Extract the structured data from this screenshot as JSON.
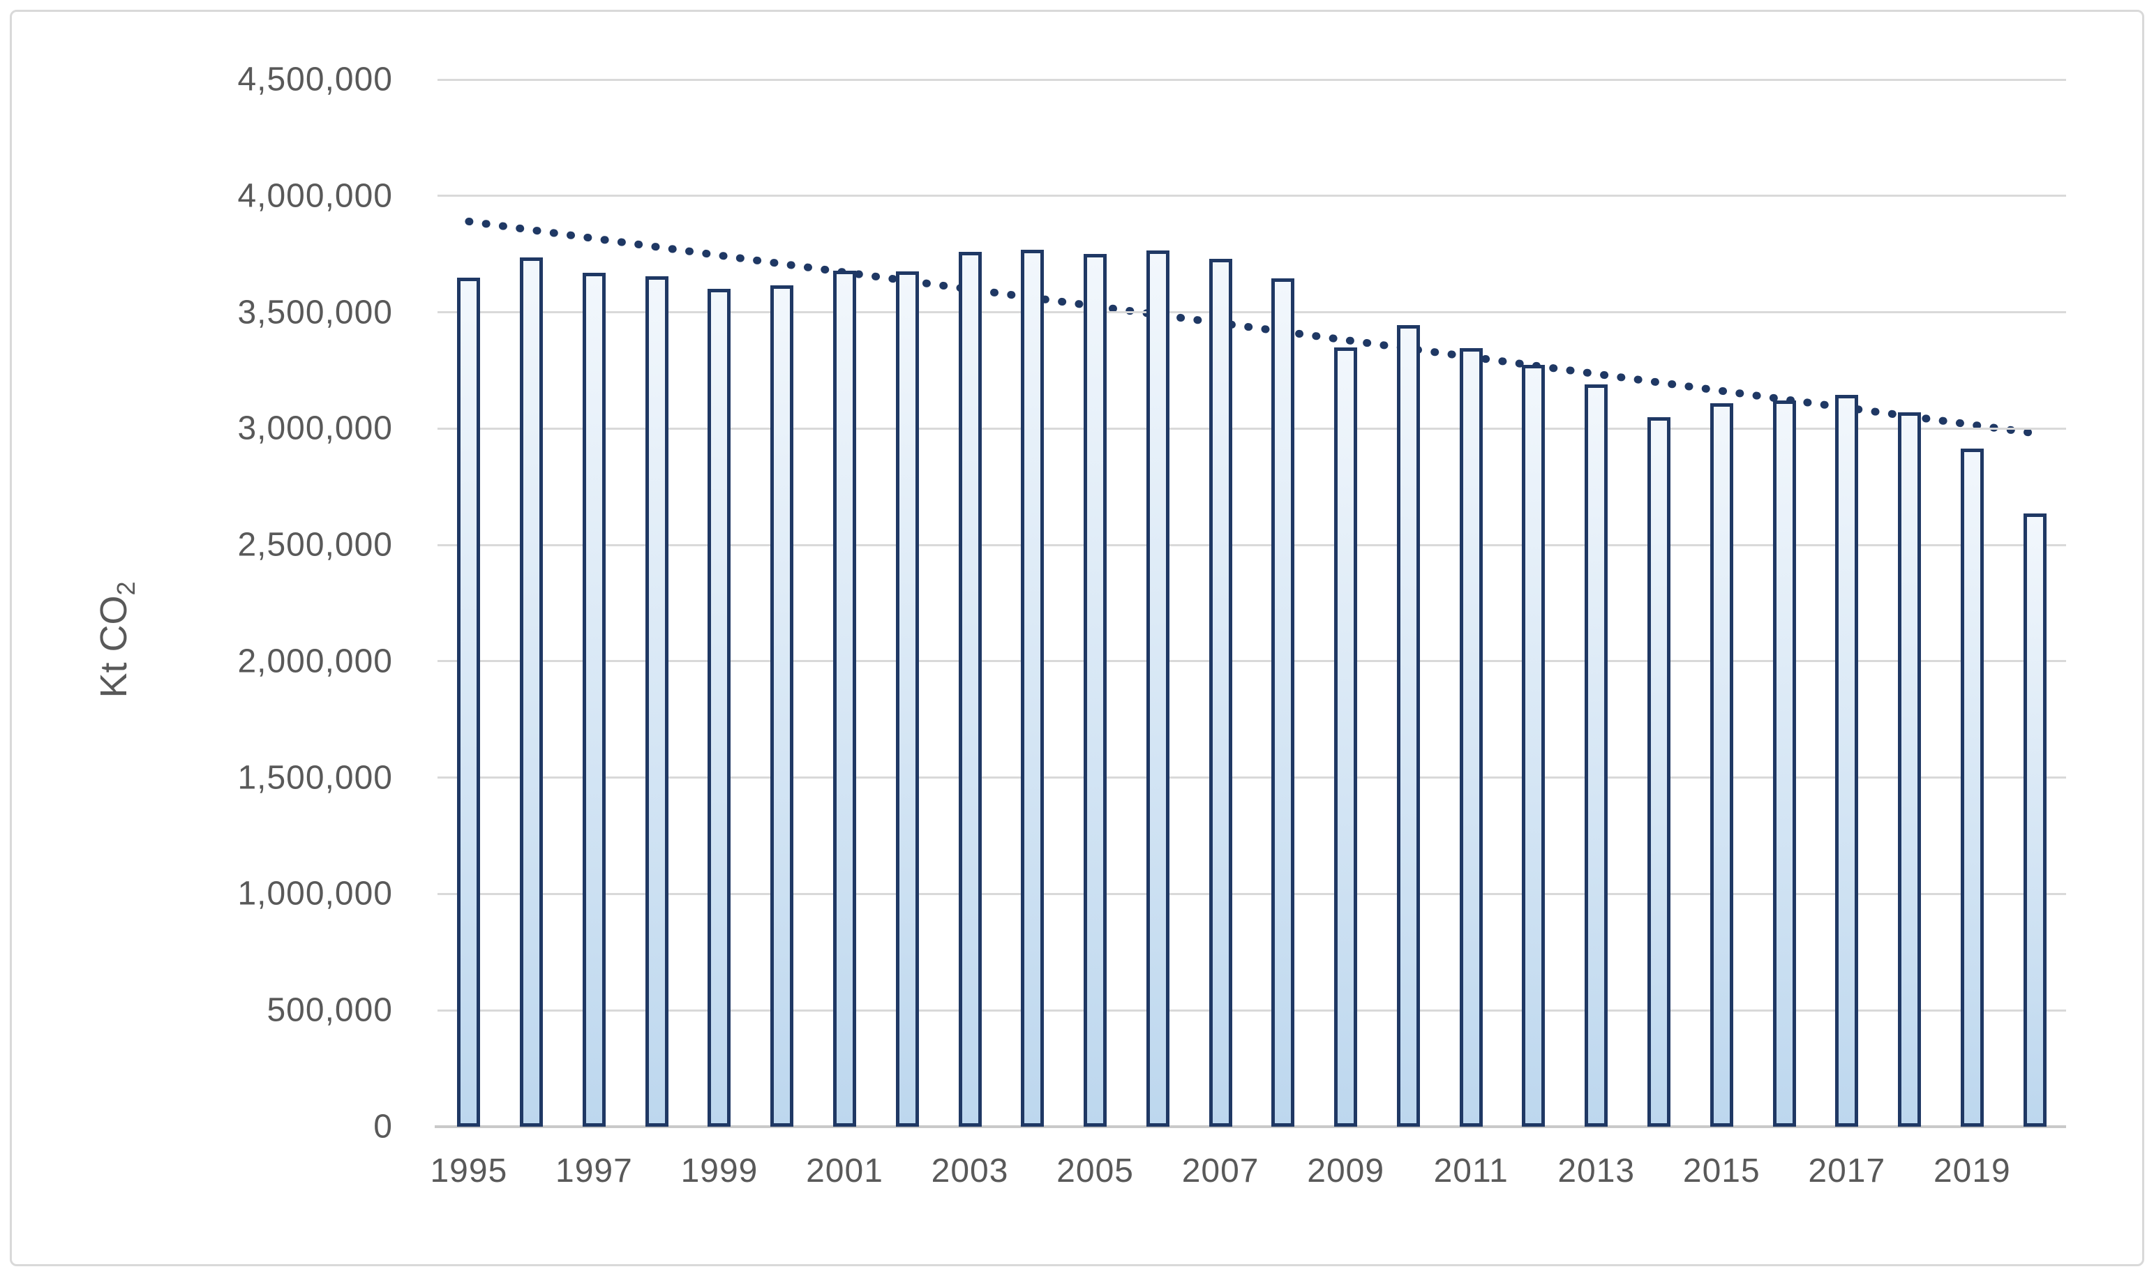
{
  "chart_data": {
    "type": "bar",
    "title": "",
    "ylabel": {
      "text": "Kt CO",
      "sub": "2"
    },
    "xlabel": "",
    "categories": [
      "1995",
      "1996",
      "1997",
      "1998",
      "1999",
      "2000",
      "2001",
      "2002",
      "2003",
      "2004",
      "2005",
      "2006",
      "2007",
      "2008",
      "2009",
      "2010",
      "2011",
      "2012",
      "2013",
      "2014",
      "2015",
      "2016",
      "2017",
      "2018",
      "2019",
      "2020"
    ],
    "values": [
      3650000,
      3735000,
      3670000,
      3655000,
      3600000,
      3615000,
      3680000,
      3675000,
      3760000,
      3770000,
      3750000,
      3765000,
      3730000,
      3645000,
      3350000,
      3445000,
      3345000,
      3275000,
      3190000,
      3050000,
      3110000,
      3120000,
      3145000,
      3070000,
      2915000,
      2635000
    ],
    "x_tick_labels": [
      "1995",
      "1997",
      "1999",
      "2001",
      "2003",
      "2005",
      "2007",
      "2009",
      "2011",
      "2013",
      "2015",
      "2017",
      "2019"
    ],
    "y_ticks": [
      {
        "value": 0,
        "label": "0"
      },
      {
        "value": 500000,
        "label": "500,000"
      },
      {
        "value": 1000000,
        "label": "1,000,000"
      },
      {
        "value": 1500000,
        "label": "1,500,000"
      },
      {
        "value": 2000000,
        "label": "2,000,000"
      },
      {
        "value": 2500000,
        "label": "2,500,000"
      },
      {
        "value": 3000000,
        "label": "3,000,000"
      },
      {
        "value": 3500000,
        "label": "3,500,000"
      },
      {
        "value": 4000000,
        "label": "4,000,000"
      },
      {
        "value": 4500000,
        "label": "4,500,000"
      }
    ],
    "ylim": [
      0,
      4500000
    ],
    "grid": true,
    "legend_position": "none",
    "trendline": {
      "type": "linear",
      "style": "dotted",
      "start_value": 3890000,
      "end_value": 2980000
    },
    "colors": {
      "bar_fill_top": "#F2F7FC",
      "bar_fill_bottom": "#BDD7EE",
      "bar_border": "#1F3864",
      "trendline": "#1F3864",
      "gridline": "#D9D9D9",
      "axis_line": "#C9C9C9",
      "text": "#595959",
      "frame_border": "#D9D9D9",
      "background": "#FFFFFF"
    }
  }
}
